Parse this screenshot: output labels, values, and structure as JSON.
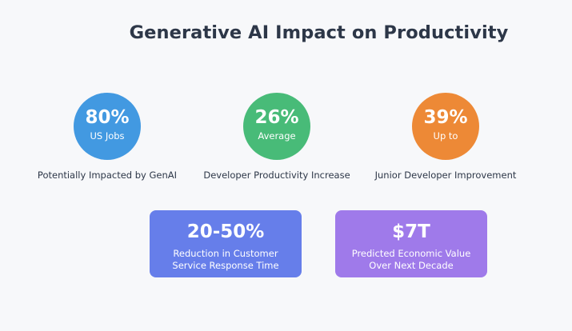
{
  "title": "Generative AI Impact on Productivity",
  "stats": [
    {
      "value": "80%",
      "sublabel": "US Jobs",
      "caption": "Potentially Impacted by GenAI",
      "color": "#4299e1"
    },
    {
      "value": "26%",
      "sublabel": "Average",
      "caption": "Developer Productivity Increase",
      "color": "#48bb78"
    },
    {
      "value": "39%",
      "sublabel": "Up to",
      "caption": "Junior Developer Improvement",
      "color": "#ed8936"
    }
  ],
  "highlights": [
    {
      "value": "20-50%",
      "line1": "Reduction in Customer",
      "line2": "Service Response Time",
      "color": "#667eea"
    },
    {
      "value": "$7T",
      "line1": "Predicted Economic Value",
      "line2": "Over Next Decade",
      "color": "#9f7aea"
    }
  ]
}
